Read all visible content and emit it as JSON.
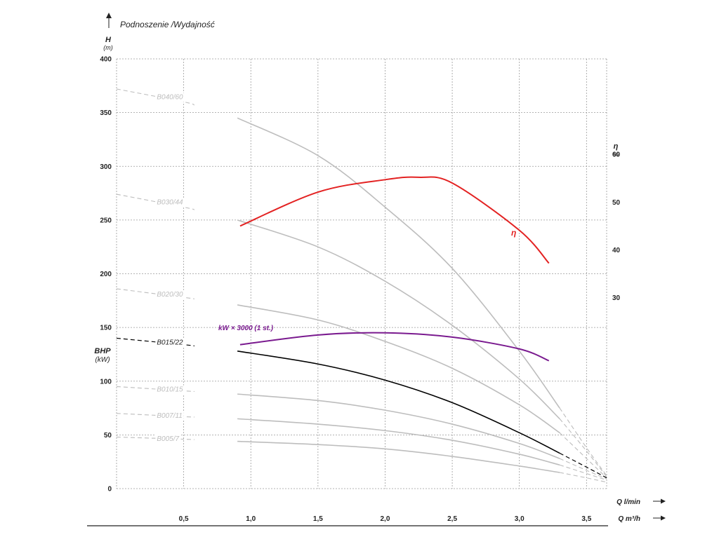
{
  "chart_data": {
    "type": "line",
    "title": "Podnoszenie /Wydajność",
    "y_left": {
      "label": "H",
      "unit": "(m)",
      "range": [
        0,
        400
      ],
      "ticks": [
        "0",
        "50",
        "100",
        "150",
        "200",
        "250",
        "300",
        "350",
        "400"
      ]
    },
    "y_left_secondary": {
      "label": "BHP",
      "unit": "(kW)"
    },
    "y_right": {
      "label": "η",
      "unit": "%",
      "range": [
        -10,
        80
      ],
      "ticks": [
        "30",
        "40",
        "50",
        "60"
      ]
    },
    "x": {
      "range": [
        0,
        3.65
      ],
      "ticks": [
        "0,5",
        "1,0",
        "1,5",
        "2,0",
        "2,5",
        "3,0",
        "3,5"
      ],
      "tick_values": [
        0.5,
        1.0,
        1.5,
        2.0,
        2.5,
        3.0,
        3.5
      ]
    },
    "x_label_1": "Q l/min",
    "x_label_2": "Q m³/h",
    "grid": true,
    "series": [
      {
        "name": "B040/60",
        "color": "#bdbdbd",
        "label_at": 0.3,
        "x": [
          0,
          0.5,
          0.9,
          1.5,
          2.0,
          2.5,
          3.0,
          3.3,
          3.5,
          3.65
        ],
        "values": [
          372,
          360,
          345,
          310,
          262,
          205,
          128,
          75,
          38,
          12
        ]
      },
      {
        "name": "B030/44",
        "color": "#bdbdbd",
        "label_at": 0.3,
        "x": [
          0,
          0.5,
          0.9,
          1.5,
          2.0,
          2.5,
          3.0,
          3.3,
          3.5,
          3.65
        ],
        "values": [
          274,
          262,
          250,
          225,
          193,
          152,
          102,
          65,
          35,
          11
        ]
      },
      {
        "name": "B020/30",
        "color": "#bdbdbd",
        "label_at": 0.3,
        "x": [
          0,
          0.5,
          0.9,
          1.5,
          2.0,
          2.5,
          3.0,
          3.3,
          3.5,
          3.65
        ],
        "values": [
          186,
          178,
          171,
          157,
          137,
          112,
          78,
          52,
          28,
          10
        ]
      },
      {
        "name": "B015/22",
        "color": "#000000",
        "label_at": 0.3,
        "main": true,
        "x": [
          0,
          0.5,
          0.9,
          1.5,
          2.0,
          2.5,
          3.0,
          3.3,
          3.5,
          3.65
        ],
        "values": [
          140,
          134,
          128,
          116,
          101,
          80,
          52,
          33,
          20,
          10
        ]
      },
      {
        "name": "B010/15",
        "color": "#bdbdbd",
        "label_at": 0.3,
        "x": [
          0,
          0.5,
          0.9,
          1.5,
          2.0,
          2.5,
          3.0,
          3.3,
          3.5,
          3.65
        ],
        "values": [
          95,
          91,
          88,
          82,
          73,
          60,
          42,
          28,
          17,
          9
        ]
      },
      {
        "name": "B007/11",
        "color": "#bdbdbd",
        "label_at": 0.3,
        "x": [
          0,
          0.5,
          0.9,
          1.5,
          2.0,
          2.5,
          3.0,
          3.3,
          3.5,
          3.65
        ],
        "values": [
          70,
          67,
          65,
          60,
          54,
          45,
          32,
          22,
          14,
          8
        ]
      },
      {
        "name": "B005/7",
        "color": "#bdbdbd",
        "label_at": 0.3,
        "x": [
          0,
          0.5,
          0.9,
          1.5,
          2.0,
          2.5,
          3.0,
          3.3,
          3.5,
          3.65
        ],
        "values": [
          48,
          46,
          44,
          41,
          37,
          30,
          21,
          15,
          10,
          6
        ]
      },
      {
        "name": "kW × 3000 (1 st.)",
        "color": "#7a1a8f",
        "axis": "left",
        "x": [
          0.92,
          1.5,
          2.0,
          2.5,
          3.0,
          3.22
        ],
        "values": [
          134,
          143,
          145,
          141,
          130,
          119
        ]
      },
      {
        "name": "η",
        "color": "#e32222",
        "axis": "right",
        "x": [
          0.92,
          1.5,
          2.0,
          2.25,
          2.5,
          3.0,
          3.22
        ],
        "values": [
          45,
          52.1,
          54.7,
          55.2,
          54.0,
          44.1,
          37.2
        ]
      }
    ]
  }
}
